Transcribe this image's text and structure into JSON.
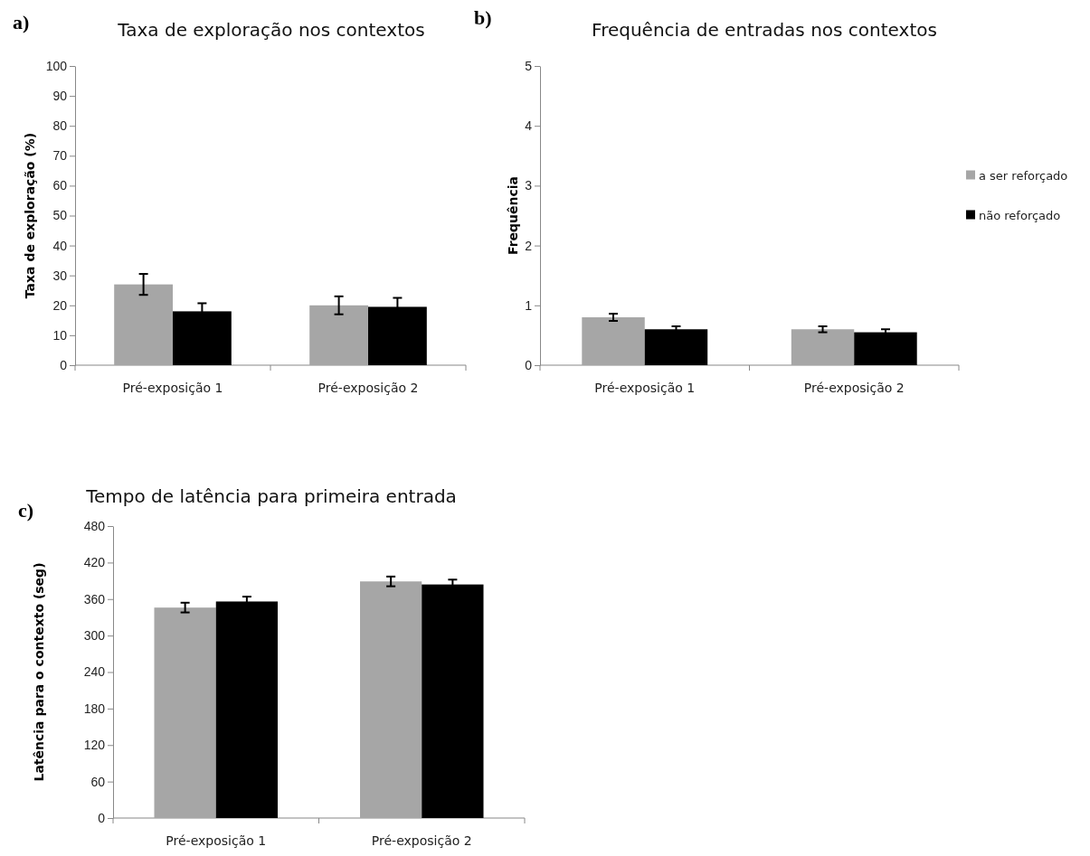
{
  "chart_data": [
    {
      "type": "bar",
      "title": "Taxa de exploração nos contextos",
      "ylabel": "Taxa de exploração (%)",
      "annotations": [
        "a)"
      ],
      "categories": [
        "Pré-exposição 1",
        "Pré-exposição 2"
      ],
      "ylim": [
        0,
        100
      ],
      "yticks": [
        0,
        10,
        20,
        30,
        40,
        50,
        60,
        70,
        80,
        90,
        100
      ],
      "grid": false,
      "legend": false,
      "series": [
        {
          "color": "#a6a6a6",
          "values": [
            27,
            20
          ],
          "errors": [
            3.5,
            3
          ]
        },
        {
          "color": "#000000",
          "values": [
            18,
            19.5
          ],
          "errors": [
            2.7,
            3
          ]
        }
      ]
    },
    {
      "type": "bar",
      "title": "Frequência de entradas nos contextos",
      "ylabel": "Frequência",
      "annotations": [
        "b)"
      ],
      "categories": [
        "Pré-exposição 1",
        "Pré-exposição 2"
      ],
      "ylim": [
        0,
        5
      ],
      "yticks": [
        0,
        1,
        2,
        3,
        4,
        5
      ],
      "grid": false,
      "legend": "right",
      "series": [
        {
          "name": "a ser reforçado",
          "color": "#a6a6a6",
          "values": [
            0.8,
            0.6
          ],
          "errors": [
            0.06,
            0.05
          ]
        },
        {
          "name": "não reforçado",
          "color": "#000000",
          "values": [
            0.6,
            0.55
          ],
          "errors": [
            0.05,
            0.05
          ]
        }
      ]
    },
    {
      "type": "bar",
      "title": "Tempo de latência para primeira entrada",
      "ylabel": "Latência para o contexto (seg)",
      "annotations": [
        "c)"
      ],
      "categories": [
        "Pré-exposição 1",
        "Pré-exposição 2"
      ],
      "ylim": [
        0,
        480
      ],
      "yticks": [
        0,
        60,
        120,
        180,
        240,
        300,
        360,
        420,
        480
      ],
      "grid": false,
      "legend": false,
      "series": [
        {
          "color": "#a6a6a6",
          "values": [
            346,
            389
          ],
          "errors": [
            8,
            8
          ]
        },
        {
          "color": "#000000",
          "values": [
            356,
            384
          ],
          "errors": [
            8,
            8
          ]
        }
      ]
    }
  ]
}
